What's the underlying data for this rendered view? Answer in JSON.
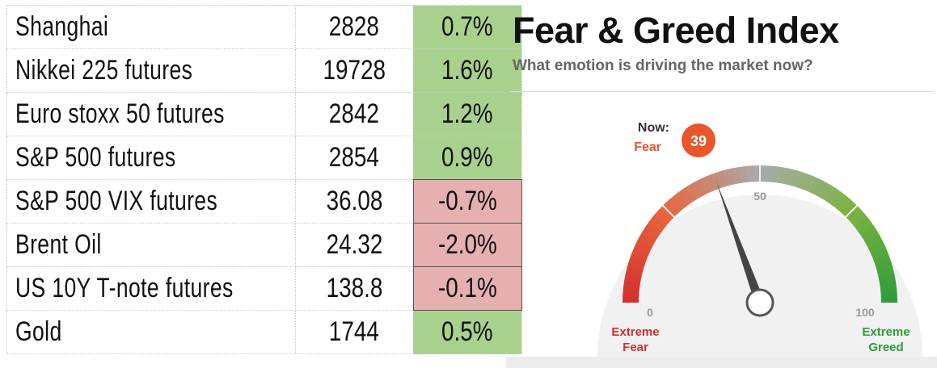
{
  "market_table": {
    "rows": [
      {
        "name": "Shanghai",
        "price": "2828",
        "change": "0.7%",
        "direction": "up"
      },
      {
        "name": "Nikkei 225 futures",
        "price": "19728",
        "change": "1.6%",
        "direction": "up"
      },
      {
        "name": "Euro stoxx 50 futures",
        "price": "2842",
        "change": "1.2%",
        "direction": "up"
      },
      {
        "name": "S&P 500 futures",
        "price": "2854",
        "change": "0.9%",
        "direction": "up"
      },
      {
        "name": "S&P 500 VIX futures",
        "price": "36.08",
        "change": "-0.7%",
        "direction": "down"
      },
      {
        "name": "Brent Oil",
        "price": "24.32",
        "change": "-2.0%",
        "direction": "down"
      },
      {
        "name": "US 10Y T-note futures",
        "price": "138.8",
        "change": "-0.1%",
        "direction": "down"
      },
      {
        "name": "Gold",
        "price": "1744",
        "change": "0.5%",
        "direction": "up"
      }
    ],
    "colors": {
      "up": "#a9d18e",
      "down": "#e6b0b0"
    }
  },
  "fear_greed": {
    "title": "Fear & Greed Index",
    "subtitle": "What emotion is driving the market now?",
    "now_label": "Now:",
    "now_status": "Fear",
    "value": 39,
    "value_text": "39",
    "scale_min": "0",
    "scale_mid": "50",
    "scale_max": "100",
    "left_label_line1": "Extreme",
    "left_label_line2": "Fear",
    "right_label_line1": "Extreme",
    "right_label_line2": "Greed",
    "colors": {
      "extreme_fear": "#d32f2f",
      "fear": "#e8663d",
      "neutral": "#aaaaaa",
      "greed": "#7cb342",
      "extreme_greed": "#2e9c3a",
      "badge": "#e8572a",
      "needle": "#444444"
    }
  }
}
